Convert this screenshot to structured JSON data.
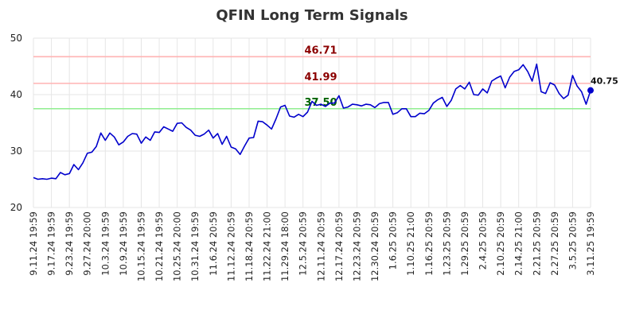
{
  "chart_data": {
    "type": "line",
    "title": "QFIN Long Term Signals",
    "ylim": [
      20,
      50
    ],
    "yticks": [
      20,
      30,
      40,
      50
    ],
    "grid": true,
    "xticks": [
      "9.11.24 19:59",
      "9.17.24 19:59",
      "9.23.24 19:59",
      "9.27.24 20:00",
      "10.3.24 19:59",
      "10.9.24 19:59",
      "10.15.24 19:59",
      "10.21.24 19:59",
      "10.25.24 20:00",
      "10.31.24 19:59",
      "11.6.24 20:59",
      "11.12.24 20:59",
      "11.18.24 20:59",
      "11.22.24 21:00",
      "11.29.24 18:00",
      "12.5.24 20:59",
      "12.11.24 20:59",
      "12.17.24 20:59",
      "12.23.24 20:59",
      "12.30.24 20:59",
      "1.6.25 20:59",
      "1.10.25 21:00",
      "1.16.25 20:59",
      "1.23.25 20:59",
      "1.29.25 20:59",
      "2.4.25 20:59",
      "2.10.25 20:59",
      "2.14.25 21:00",
      "2.21.25 20:59",
      "2.27.25 20:59",
      "3.5.25 20:59",
      "3.11.25 19:59"
    ],
    "series": [
      {
        "color": "#0000cc",
        "values": [
          25.3,
          25.0,
          25.1,
          25.0,
          25.2,
          25.1,
          26.2,
          25.8,
          26.0,
          27.6,
          26.7,
          27.9,
          29.6,
          29.8,
          30.8,
          33.2,
          31.9,
          33.2,
          32.5,
          31.1,
          31.6,
          32.6,
          33.1,
          33.0,
          31.4,
          32.5,
          31.9,
          33.4,
          33.3,
          34.3,
          33.9,
          33.5,
          34.9,
          35.0,
          34.2,
          33.7,
          32.8,
          32.6,
          33.0,
          33.7,
          32.3,
          33.1,
          31.2,
          32.6,
          30.7,
          30.4,
          29.4,
          30.9,
          32.3,
          32.4,
          35.3,
          35.2,
          34.6,
          33.9,
          35.7,
          37.8,
          38.1,
          36.2,
          36.0,
          36.5,
          36.1,
          36.9,
          38.8,
          38.1,
          38.3,
          37.9,
          38.5,
          38.5,
          39.8,
          37.6,
          37.8,
          38.3,
          38.2,
          38.0,
          38.3,
          38.2,
          37.7,
          38.4,
          38.6,
          38.6,
          36.5,
          36.8,
          37.5,
          37.5,
          36.1,
          36.1,
          36.7,
          36.6,
          37.2,
          38.5,
          39.1,
          39.5,
          37.9,
          39.0,
          41.0,
          41.6,
          41.0,
          42.2,
          40.0,
          39.9,
          41.0,
          40.3,
          42.4,
          42.9,
          43.3,
          41.2,
          43.1,
          44.1,
          44.4,
          45.3,
          44.1,
          42.4,
          45.4,
          40.5,
          40.2,
          42.1,
          41.7,
          40.2,
          39.3,
          39.9,
          43.4,
          41.5,
          40.5,
          38.3,
          40.75
        ]
      }
    ],
    "levels": [
      {
        "value": 46.71,
        "label": "46.71",
        "line_color": "#ffb3b3",
        "text_color": "#8b0000"
      },
      {
        "value": 41.99,
        "label": "41.99",
        "line_color": "#ffb3b3",
        "text_color": "#8b0000"
      },
      {
        "value": 37.5,
        "label": "37.50",
        "line_color": "#90ee90",
        "text_color": "#006400"
      }
    ],
    "last_value_label": "40.75"
  }
}
